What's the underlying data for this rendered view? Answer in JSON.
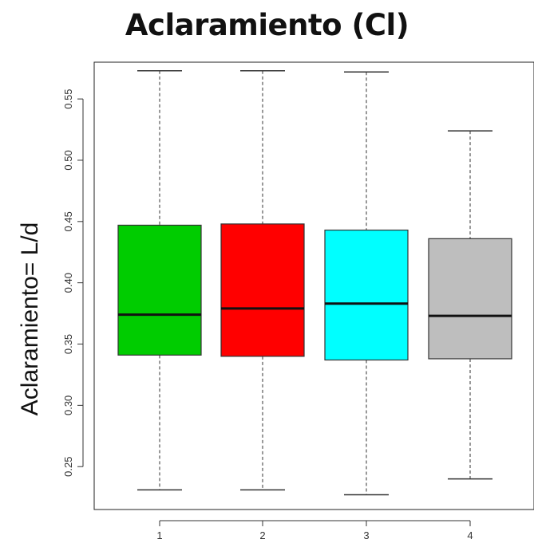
{
  "chart_data": {
    "type": "boxplot",
    "title": "Aclaramiento (Cl)",
    "xlabel": "",
    "ylabel": "Aclaramiento= L/d",
    "ylim": [
      0.215,
      0.58
    ],
    "yticks": [
      0.25,
      0.3,
      0.35,
      0.4,
      0.45,
      0.5,
      0.55
    ],
    "ytick_labels": [
      "0.25",
      "0.30",
      "0.35",
      "0.40",
      "0.45",
      "0.50",
      "0.55"
    ],
    "categories": [
      "1",
      "2",
      "3",
      "4"
    ],
    "boxes": [
      {
        "category": "1",
        "whisker_low": 0.231,
        "q1": 0.341,
        "median": 0.374,
        "q3": 0.447,
        "whisker_high": 0.573,
        "color": "#00cc00"
      },
      {
        "category": "2",
        "whisker_low": 0.231,
        "q1": 0.34,
        "median": 0.379,
        "q3": 0.448,
        "whisker_high": 0.573,
        "color": "#ff0000"
      },
      {
        "category": "3",
        "whisker_low": 0.227,
        "q1": 0.337,
        "median": 0.383,
        "q3": 0.443,
        "whisker_high": 0.572,
        "color": "#00ffff"
      },
      {
        "category": "4",
        "whisker_low": 0.24,
        "q1": 0.338,
        "median": 0.373,
        "q3": 0.436,
        "whisker_high": 0.524,
        "color": "#bebebe"
      }
    ],
    "grid": false
  }
}
